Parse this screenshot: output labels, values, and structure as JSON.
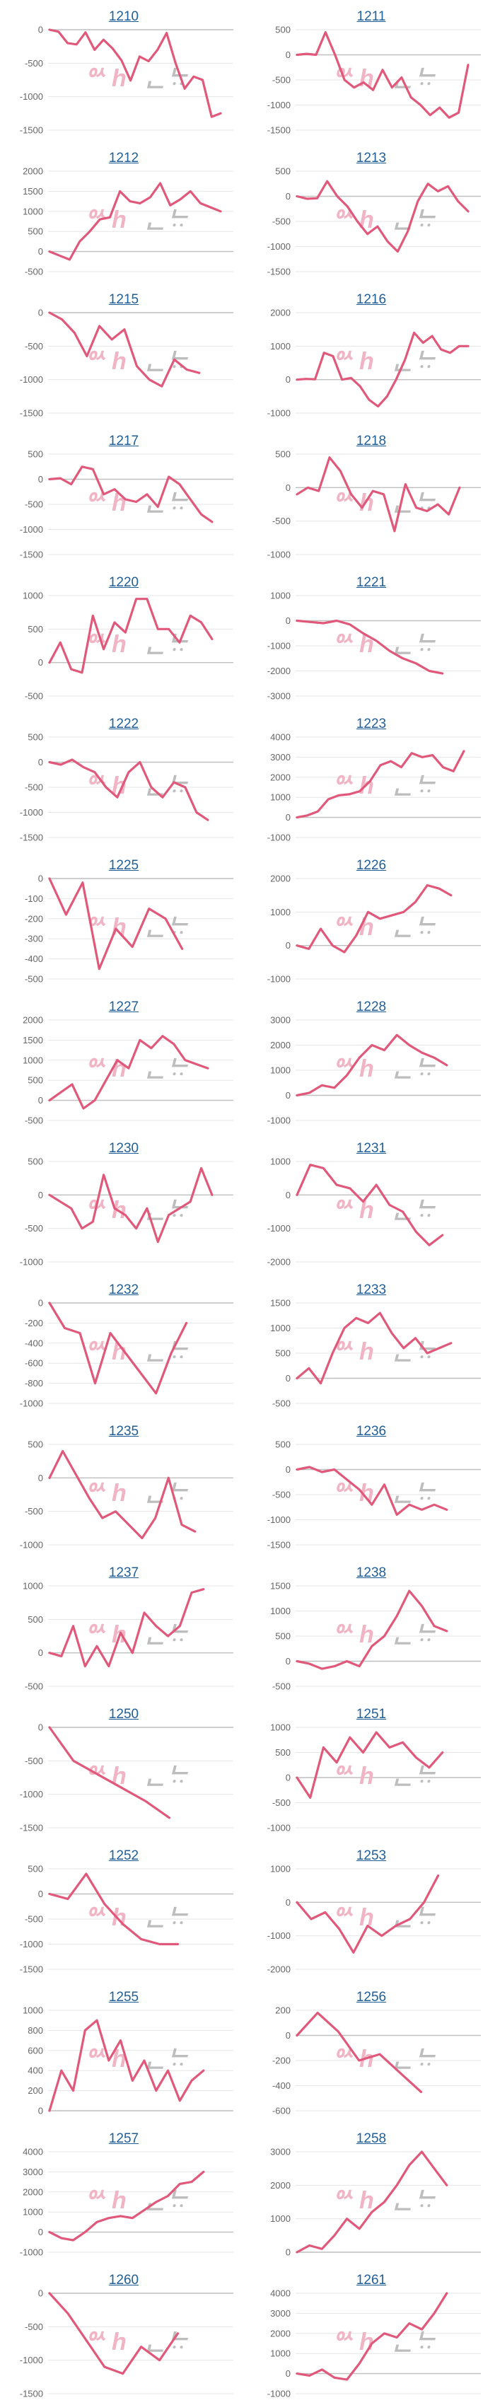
{
  "style": {
    "line_color": "#e0587a",
    "grid_color": "#e6e6e6",
    "title_color": "#1f5f99",
    "watermark_left_color": "#f0b4c4",
    "watermark_right_color": "#bdbdbd"
  },
  "watermark": {
    "left": "ᅅ h",
    "right": "ᆫᄂᆢ"
  },
  "chart_data": [
    {
      "title": "1210",
      "type": "line",
      "y_ticks": [
        0,
        -500,
        -1000,
        -1500
      ],
      "ylim": [
        -1500,
        0
      ],
      "grid": true,
      "series": [
        {
          "values": [
            0,
            -30,
            -200,
            -220,
            -40,
            -300,
            -150,
            -280,
            -460,
            -760,
            -400,
            -470,
            -300,
            -50,
            -500,
            -880,
            -700,
            -750,
            -1300,
            -1250
          ]
        }
      ]
    },
    {
      "title": "1211",
      "type": "line",
      "y_ticks": [
        500,
        0,
        -500,
        -1000,
        -1500
      ],
      "ylim": [
        -1500,
        500
      ],
      "grid": true,
      "series": [
        {
          "values": [
            0,
            20,
            0,
            450,
            0,
            -500,
            -650,
            -550,
            -700,
            -300,
            -650,
            -450,
            -850,
            -1000,
            -1200,
            -1050,
            -1250,
            -1150,
            -200
          ]
        }
      ]
    },
    {
      "title": "1212",
      "type": "line",
      "y_ticks": [
        2000,
        1500,
        1000,
        500,
        0,
        -500
      ],
      "ylim": [
        -500,
        2000
      ],
      "grid": true,
      "series": [
        {
          "values": [
            0,
            -100,
            -200,
            250,
            500,
            800,
            850,
            1500,
            1250,
            1200,
            1350,
            1700,
            1150,
            1300,
            1500,
            1200,
            1100,
            1000
          ]
        }
      ]
    },
    {
      "title": "1213",
      "type": "line",
      "y_ticks": [
        500,
        0,
        -500,
        -1000,
        -1500
      ],
      "ylim": [
        -1500,
        500
      ],
      "grid": true,
      "series": [
        {
          "values": [
            0,
            -50,
            -40,
            300,
            0,
            -200,
            -500,
            -750,
            -600,
            -900,
            -1100,
            -700,
            -100,
            250,
            100,
            200,
            -100,
            -300
          ]
        }
      ]
    },
    {
      "title": "1215",
      "type": "line",
      "y_ticks": [
        0,
        -500,
        -1000,
        -1500
      ],
      "ylim": [
        -1500,
        0
      ],
      "grid": true,
      "series": [
        {
          "values": [
            0,
            -100,
            -300,
            -650,
            -200,
            -400,
            -250,
            -800,
            -1000,
            -1100,
            -700,
            -850,
            -900
          ]
        }
      ]
    },
    {
      "title": "1216",
      "type": "line",
      "y_ticks": [
        2000,
        1000,
        0,
        -1000
      ],
      "ylim": [
        -1000,
        2000
      ],
      "grid": true,
      "series": [
        {
          "values": [
            0,
            20,
            10,
            800,
            700,
            0,
            50,
            -200,
            -600,
            -800,
            -500,
            0,
            600,
            1400,
            1100,
            1300,
            900,
            800,
            1000,
            1000
          ]
        }
      ]
    },
    {
      "title": "1217",
      "type": "line",
      "y_ticks": [
        500,
        0,
        -500,
        -1000,
        -1500
      ],
      "ylim": [
        -1500,
        500
      ],
      "grid": true,
      "series": [
        {
          "values": [
            0,
            20,
            -100,
            250,
            200,
            -300,
            -200,
            -400,
            -450,
            -300,
            -550,
            50,
            -100,
            -400,
            -700,
            -850
          ]
        }
      ]
    },
    {
      "title": "1218",
      "type": "line",
      "y_ticks": [
        500,
        0,
        -500,
        -1000
      ],
      "ylim": [
        -1000,
        500
      ],
      "grid": true,
      "series": [
        {
          "values": [
            -100,
            0,
            -50,
            450,
            250,
            -100,
            -300,
            -50,
            -100,
            -650,
            50,
            -300,
            -350,
            -250,
            -400,
            0
          ]
        }
      ]
    },
    {
      "title": "1220",
      "type": "line",
      "y_ticks": [
        1000,
        500,
        0,
        -500
      ],
      "ylim": [
        -500,
        1000
      ],
      "grid": true,
      "series": [
        {
          "values": [
            0,
            300,
            -100,
            -150,
            700,
            200,
            600,
            450,
            950,
            950,
            500,
            500,
            300,
            700,
            600,
            350
          ]
        }
      ]
    },
    {
      "title": "1221",
      "type": "line",
      "y_ticks": [
        1000,
        0,
        -1000,
        -2000,
        -3000
      ],
      "ylim": [
        -3000,
        1000
      ],
      "grid": true,
      "series": [
        {
          "values": [
            0,
            -50,
            -100,
            0,
            -150,
            -500,
            -800,
            -1200,
            -1500,
            -1700,
            -2000,
            -2100
          ]
        }
      ]
    },
    {
      "title": "1222",
      "type": "line",
      "y_ticks": [
        500,
        0,
        -500,
        -1000,
        -1500
      ],
      "ylim": [
        -1500,
        500
      ],
      "grid": true,
      "series": [
        {
          "values": [
            0,
            -50,
            50,
            -100,
            -200,
            -500,
            -700,
            -200,
            0,
            -500,
            -700,
            -400,
            -500,
            -1000,
            -1150
          ]
        }
      ]
    },
    {
      "title": "1223",
      "type": "line",
      "y_ticks": [
        4000,
        3000,
        2000,
        1000,
        0,
        -1000
      ],
      "ylim": [
        -1000,
        4000
      ],
      "grid": true,
      "series": [
        {
          "values": [
            0,
            100,
            300,
            900,
            1100,
            1150,
            1300,
            1800,
            2600,
            2800,
            2500,
            3200,
            3000,
            3100,
            2500,
            2300,
            3300
          ]
        }
      ]
    },
    {
      "title": "1225",
      "type": "line",
      "y_ticks": [
        0,
        -100,
        -200,
        -300,
        -400,
        -500
      ],
      "ylim": [
        -500,
        0
      ],
      "grid": true,
      "series": [
        {
          "values": [
            0,
            -180,
            -20,
            -450,
            -250,
            -340,
            -150,
            -200,
            -350
          ]
        }
      ]
    },
    {
      "title": "1226",
      "type": "line",
      "y_ticks": [
        2000,
        1000,
        0,
        -1000
      ],
      "ylim": [
        -1000,
        2000
      ],
      "grid": true,
      "series": [
        {
          "values": [
            0,
            -100,
            500,
            0,
            -200,
            300,
            1000,
            800,
            900,
            1000,
            1300,
            1800,
            1700,
            1500
          ]
        }
      ]
    },
    {
      "title": "1227",
      "type": "line",
      "y_ticks": [
        2000,
        1500,
        1000,
        500,
        0,
        -500
      ],
      "ylim": [
        -500,
        2000
      ],
      "grid": true,
      "series": [
        {
          "values": [
            0,
            200,
            400,
            -200,
            0,
            500,
            1000,
            800,
            1500,
            1300,
            1600,
            1400,
            1000,
            900,
            800
          ]
        }
      ]
    },
    {
      "title": "1228",
      "type": "line",
      "y_ticks": [
        3000,
        2000,
        1000,
        0,
        -1000
      ],
      "ylim": [
        -1000,
        3000
      ],
      "grid": true,
      "series": [
        {
          "values": [
            0,
            100,
            400,
            300,
            800,
            1500,
            2000,
            1800,
            2400,
            2000,
            1700,
            1500,
            1200
          ]
        }
      ]
    },
    {
      "title": "1230",
      "type": "line",
      "y_ticks": [
        500,
        0,
        -500,
        -1000
      ],
      "ylim": [
        -1000,
        500
      ],
      "grid": true,
      "series": [
        {
          "values": [
            0,
            -100,
            -200,
            -500,
            -400,
            300,
            -200,
            -300,
            -500,
            -200,
            -700,
            -300,
            -200,
            -100,
            400,
            0
          ]
        }
      ]
    },
    {
      "title": "1231",
      "type": "line",
      "y_ticks": [
        1000,
        0,
        -1000,
        -2000
      ],
      "ylim": [
        -2000,
        1000
      ],
      "grid": true,
      "series": [
        {
          "values": [
            0,
            900,
            800,
            300,
            200,
            -200,
            300,
            -300,
            -500,
            -1100,
            -1500,
            -1200
          ]
        }
      ]
    },
    {
      "title": "1232",
      "type": "line",
      "y_ticks": [
        0,
        -200,
        -400,
        -600,
        -800,
        -1000
      ],
      "ylim": [
        -1000,
        0
      ],
      "grid": true,
      "series": [
        {
          "values": [
            0,
            -250,
            -300,
            -800,
            -300,
            -500,
            -700,
            -900,
            -500,
            -200
          ]
        }
      ]
    },
    {
      "title": "1233",
      "type": "line",
      "y_ticks": [
        1500,
        1000,
        500,
        0,
        -500
      ],
      "ylim": [
        -500,
        1500
      ],
      "grid": true,
      "series": [
        {
          "values": [
            0,
            200,
            -100,
            500,
            1000,
            1200,
            1100,
            1300,
            900,
            600,
            800,
            500,
            600,
            700
          ]
        }
      ]
    },
    {
      "title": "1235",
      "type": "line",
      "y_ticks": [
        500,
        0,
        -500,
        -1000
      ],
      "ylim": [
        -1000,
        500
      ],
      "grid": true,
      "series": [
        {
          "values": [
            0,
            400,
            50,
            -300,
            -600,
            -500,
            -700,
            -900,
            -600,
            0,
            -700,
            -800
          ]
        }
      ]
    },
    {
      "title": "1236",
      "type": "line",
      "y_ticks": [
        500,
        0,
        -500,
        -1000,
        -1500
      ],
      "ylim": [
        -1500,
        500
      ],
      "grid": true,
      "series": [
        {
          "values": [
            0,
            50,
            -50,
            0,
            -200,
            -400,
            -700,
            -300,
            -900,
            -700,
            -800,
            -700,
            -800
          ]
        }
      ]
    },
    {
      "title": "1237",
      "type": "line",
      "y_ticks": [
        1000,
        500,
        0,
        -500
      ],
      "ylim": [
        -500,
        1000
      ],
      "grid": true,
      "series": [
        {
          "values": [
            0,
            -50,
            400,
            -200,
            100,
            -200,
            300,
            0,
            600,
            400,
            250,
            400,
            900,
            950
          ]
        }
      ]
    },
    {
      "title": "1238",
      "type": "line",
      "y_ticks": [
        1500,
        1000,
        500,
        0,
        -500
      ],
      "ylim": [
        -500,
        1500
      ],
      "grid": true,
      "series": [
        {
          "values": [
            0,
            -50,
            -150,
            -100,
            0,
            -100,
            300,
            500,
            900,
            1400,
            1100,
            700,
            600
          ]
        }
      ]
    },
    {
      "title": "1250",
      "type": "line",
      "y_ticks": [
        0,
        -500,
        -1000,
        -1500
      ],
      "ylim": [
        -1500,
        0
      ],
      "grid": true,
      "series": [
        {
          "values": [
            0,
            -500,
            -700,
            -900,
            -1100,
            -1350
          ]
        }
      ]
    },
    {
      "title": "1251",
      "type": "line",
      "y_ticks": [
        1000,
        500,
        0,
        -500,
        -1000
      ],
      "ylim": [
        -1000,
        1000
      ],
      "grid": true,
      "series": [
        {
          "values": [
            0,
            -400,
            600,
            300,
            800,
            500,
            900,
            600,
            700,
            400,
            200,
            500
          ]
        }
      ]
    },
    {
      "title": "1252",
      "type": "line",
      "y_ticks": [
        500,
        0,
        -500,
        -1000,
        -1500
      ],
      "ylim": [
        -1500,
        500
      ],
      "grid": true,
      "series": [
        {
          "values": [
            0,
            -100,
            400,
            -200,
            -600,
            -900,
            -1000,
            -1000
          ]
        }
      ]
    },
    {
      "title": "1253",
      "type": "line",
      "y_ticks": [
        1000,
        0,
        -1000,
        -2000
      ],
      "ylim": [
        -2000,
        1000
      ],
      "grid": true,
      "series": [
        {
          "values": [
            0,
            -500,
            -300,
            -800,
            -1500,
            -700,
            -1000,
            -700,
            -500,
            0,
            800
          ]
        }
      ]
    },
    {
      "title": "1255",
      "type": "line",
      "y_ticks": [
        1000,
        800,
        600,
        400,
        200,
        0
      ],
      "ylim": [
        0,
        1000
      ],
      "grid": true,
      "series": [
        {
          "values": [
            0,
            400,
            200,
            800,
            900,
            500,
            700,
            300,
            500,
            200,
            400,
            100,
            300,
            400
          ]
        }
      ]
    },
    {
      "title": "1256",
      "type": "line",
      "y_ticks": [
        200,
        0,
        -200,
        -400,
        -600
      ],
      "ylim": [
        -600,
        200
      ],
      "grid": true,
      "series": [
        {
          "values": [
            0,
            180,
            30,
            -200,
            -150,
            -300,
            -450
          ]
        }
      ]
    },
    {
      "title": "1257",
      "type": "line",
      "y_ticks": [
        4000,
        3000,
        2000,
        1000,
        0,
        -1000
      ],
      "ylim": [
        -1000,
        4000
      ],
      "grid": true,
      "series": [
        {
          "values": [
            0,
            -300,
            -400,
            0,
            500,
            700,
            800,
            700,
            1100,
            1500,
            1800,
            2400,
            2500,
            3000
          ]
        }
      ]
    },
    {
      "title": "1258",
      "type": "line",
      "y_ticks": [
        3000,
        2000,
        1000,
        0
      ],
      "ylim": [
        0,
        3000
      ],
      "grid": true,
      "series": [
        {
          "values": [
            0,
            200,
            100,
            500,
            1000,
            700,
            1200,
            1500,
            2000,
            2600,
            3000,
            2500,
            2000
          ]
        }
      ]
    },
    {
      "title": "1260",
      "type": "line",
      "y_ticks": [
        0,
        -500,
        -1000,
        -1500
      ],
      "ylim": [
        -1500,
        0
      ],
      "grid": true,
      "series": [
        {
          "values": [
            0,
            -300,
            -700,
            -1100,
            -1200,
            -800,
            -1000,
            -600
          ]
        }
      ]
    },
    {
      "title": "1261",
      "type": "line",
      "y_ticks": [
        4000,
        3000,
        2000,
        1000,
        0,
        -1000
      ],
      "ylim": [
        -1000,
        4000
      ],
      "grid": true,
      "series": [
        {
          "values": [
            0,
            -100,
            200,
            -200,
            -300,
            500,
            1500,
            2000,
            1800,
            2500,
            2200,
            3000,
            4000
          ]
        }
      ]
    }
  ]
}
